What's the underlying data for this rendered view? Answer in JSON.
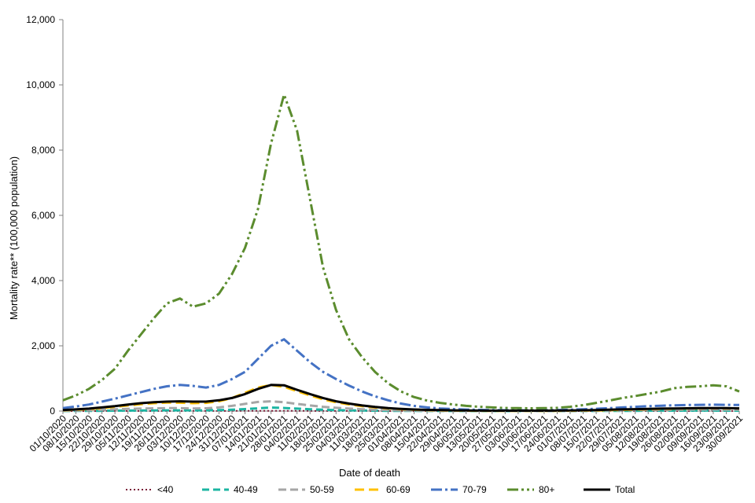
{
  "chart_data": {
    "type": "line",
    "xlabel": "Date of death",
    "ylabel": "Mortality rate** (100,000 population)",
    "ylim": [
      0,
      12000
    ],
    "yticks": [
      "0",
      "2,000",
      "4,000",
      "6,000",
      "8,000",
      "10,000",
      "12,000"
    ],
    "x": [
      "01/10/2020",
      "08/10/2020",
      "15/10/2020",
      "22/10/2020",
      "29/10/2020",
      "05/11/2020",
      "12/11/2020",
      "19/11/2020",
      "26/11/2020",
      "03/12/2020",
      "10/12/2020",
      "17/12/2020",
      "24/12/2020",
      "31/12/2020",
      "07/01/2021",
      "14/01/2021",
      "21/01/2021",
      "28/01/2021",
      "04/02/2021",
      "11/02/2021",
      "18/02/2021",
      "25/02/2021",
      "04/03/2021",
      "11/03/2021",
      "18/03/2021",
      "25/03/2021",
      "01/04/2021",
      "08/04/2021",
      "15/04/2021",
      "22/04/2021",
      "29/04/2021",
      "06/05/2021",
      "13/05/2021",
      "20/05/2021",
      "27/05/2021",
      "03/06/2021",
      "10/06/2021",
      "17/06/2021",
      "24/06/2021",
      "01/07/2021",
      "08/07/2021",
      "15/07/2021",
      "22/07/2021",
      "29/07/2021",
      "05/08/2021",
      "12/08/2021",
      "19/08/2021",
      "26/08/2021",
      "02/09/2021",
      "09/09/2021",
      "16/09/2021",
      "23/09/2021",
      "30/09/2021"
    ],
    "legend_position": "bottom",
    "series": [
      {
        "name": "<40",
        "color": "#7B1F3A",
        "dash": "2,3",
        "width": 2,
        "values": [
          1,
          1,
          1,
          2,
          2,
          2,
          2,
          2,
          3,
          3,
          3,
          3,
          3,
          4,
          4,
          5,
          6,
          5,
          5,
          4,
          3,
          3,
          2,
          2,
          2,
          1,
          1,
          1,
          1,
          1,
          1,
          1,
          0,
          0,
          0,
          0,
          0,
          0,
          1,
          1,
          1,
          1,
          1,
          1,
          1,
          1,
          1,
          1,
          1,
          2,
          2,
          2,
          2
        ]
      },
      {
        "name": "40-49",
        "color": "#1BB5A2",
        "dash": "9,5",
        "width": 3,
        "values": [
          3,
          4,
          6,
          8,
          12,
          15,
          18,
          20,
          22,
          22,
          20,
          22,
          28,
          40,
          60,
          85,
          105,
          95,
          75,
          55,
          40,
          30,
          22,
          16,
          12,
          8,
          6,
          5,
          3,
          3,
          2,
          2,
          1,
          1,
          1,
          1,
          1,
          1,
          1,
          2,
          3,
          4,
          5,
          6,
          8,
          10,
          12,
          13,
          14,
          14,
          14,
          13,
          12
        ]
      },
      {
        "name": "50-59",
        "color": "#A6A6A6",
        "dash": "10,5",
        "width": 3,
        "values": [
          10,
          15,
          25,
          40,
          55,
          65,
          75,
          85,
          90,
          88,
          80,
          85,
          110,
          160,
          220,
          280,
          300,
          270,
          220,
          170,
          130,
          100,
          75,
          55,
          40,
          30,
          20,
          15,
          10,
          8,
          6,
          5,
          4,
          3,
          3,
          3,
          3,
          3,
          4,
          5,
          8,
          12,
          16,
          20,
          26,
          32,
          38,
          42,
          45,
          48,
          48,
          46,
          44
        ]
      },
      {
        "name": "60-69",
        "color": "#FFC000",
        "dash": "12,6",
        "width": 3,
        "values": [
          25,
          40,
          60,
          90,
          130,
          170,
          210,
          240,
          260,
          255,
          240,
          250,
          300,
          400,
          560,
          720,
          800,
          740,
          610,
          480,
          360,
          270,
          200,
          150,
          110,
          80,
          55,
          40,
          30,
          22,
          16,
          12,
          9,
          7,
          6,
          6,
          6,
          7,
          8,
          10,
          15,
          20,
          28,
          35,
          45,
          55,
          65,
          72,
          78,
          82,
          85,
          83,
          80
        ]
      },
      {
        "name": "70-79",
        "color": "#4472C4",
        "dash": "14,4,3,4",
        "width": 3,
        "values": [
          90,
          140,
          200,
          290,
          380,
          480,
          580,
          680,
          760,
          800,
          770,
          720,
          800,
          980,
          1200,
          1600,
          2000,
          2200,
          1850,
          1500,
          1200,
          980,
          780,
          600,
          450,
          330,
          230,
          160,
          110,
          80,
          60,
          45,
          35,
          28,
          25,
          23,
          22,
          25,
          30,
          40,
          55,
          70,
          90,
          110,
          130,
          150,
          165,
          175,
          185,
          190,
          195,
          190,
          185
        ]
      },
      {
        "name": "80+",
        "color": "#5B8C2E",
        "dash": "14,4,3,4,3,4",
        "width": 3,
        "values": [
          330,
          480,
          680,
          950,
          1300,
          1850,
          2350,
          2850,
          3300,
          3450,
          3200,
          3300,
          3600,
          4200,
          5000,
          6200,
          8200,
          9700,
          8600,
          6500,
          4400,
          3100,
          2200,
          1650,
          1200,
          850,
          600,
          430,
          320,
          250,
          200,
          160,
          130,
          110,
          95,
          90,
          85,
          90,
          100,
          130,
          180,
          250,
          320,
          400,
          460,
          530,
          600,
          700,
          740,
          760,
          790,
          760,
          600
        ]
      },
      {
        "name": "Total",
        "color": "#000000",
        "dash": "",
        "width": 3,
        "values": [
          30,
          50,
          75,
          110,
          150,
          200,
          240,
          270,
          290,
          300,
          290,
          290,
          330,
          400,
          520,
          680,
          800,
          790,
          650,
          520,
          400,
          300,
          230,
          170,
          125,
          90,
          65,
          48,
          36,
          28,
          22,
          18,
          15,
          13,
          12,
          11,
          11,
          12,
          14,
          18,
          24,
          32,
          40,
          50,
          58,
          66,
          74,
          80,
          85,
          88,
          90,
          88,
          82
        ]
      }
    ]
  }
}
